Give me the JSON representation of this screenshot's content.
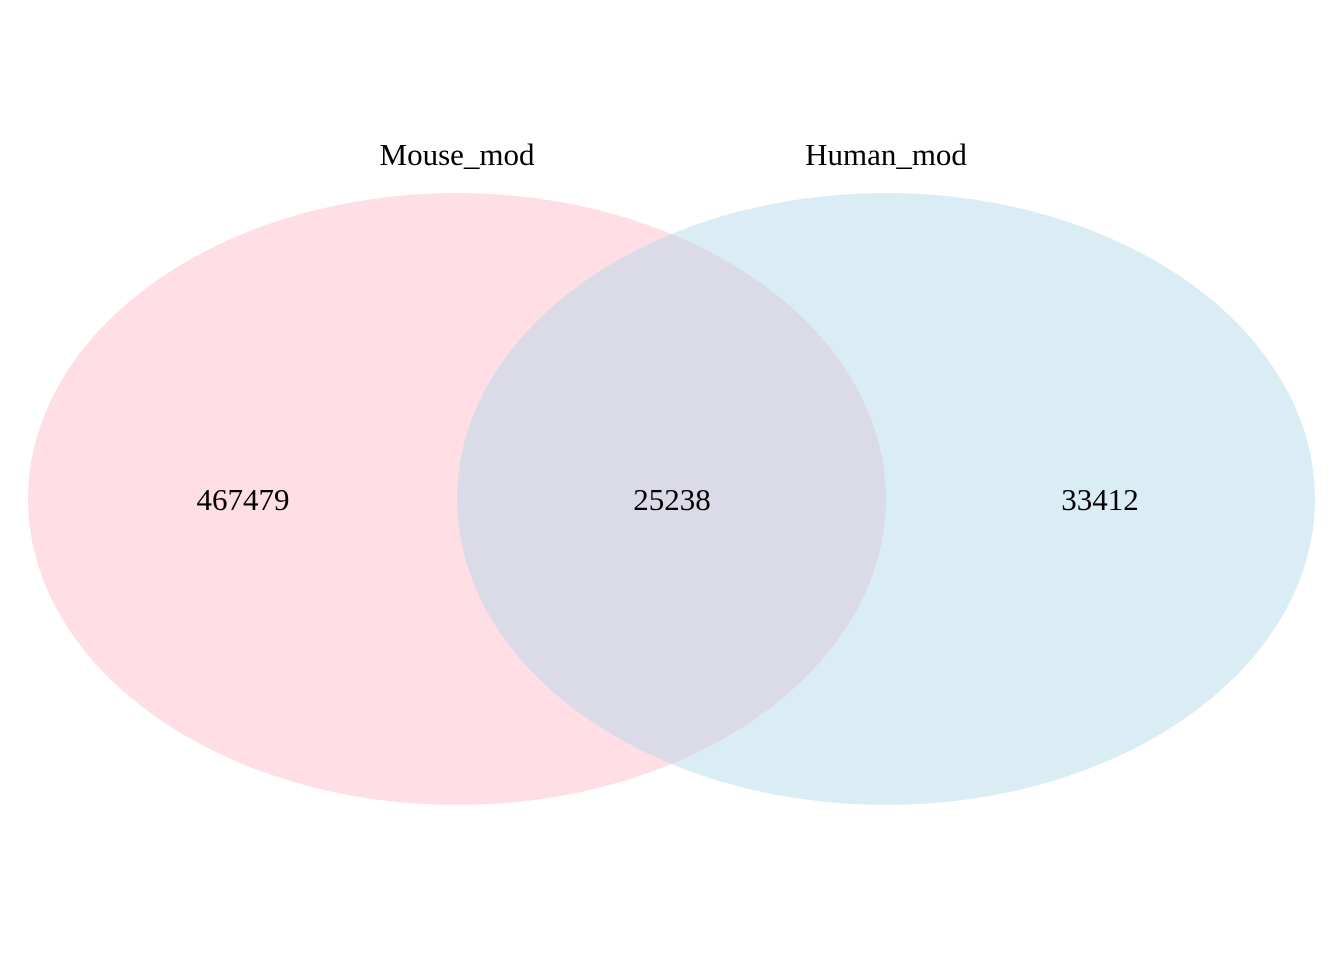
{
  "venn": {
    "sets": [
      {
        "name": "Mouse_mod",
        "only_count": "467479",
        "color": "#ffb6c8"
      },
      {
        "name": "Human_mod",
        "only_count": "33412",
        "color": "#add8e6"
      }
    ],
    "intersection_count": "25238",
    "fill_opacity": 0.45
  }
}
